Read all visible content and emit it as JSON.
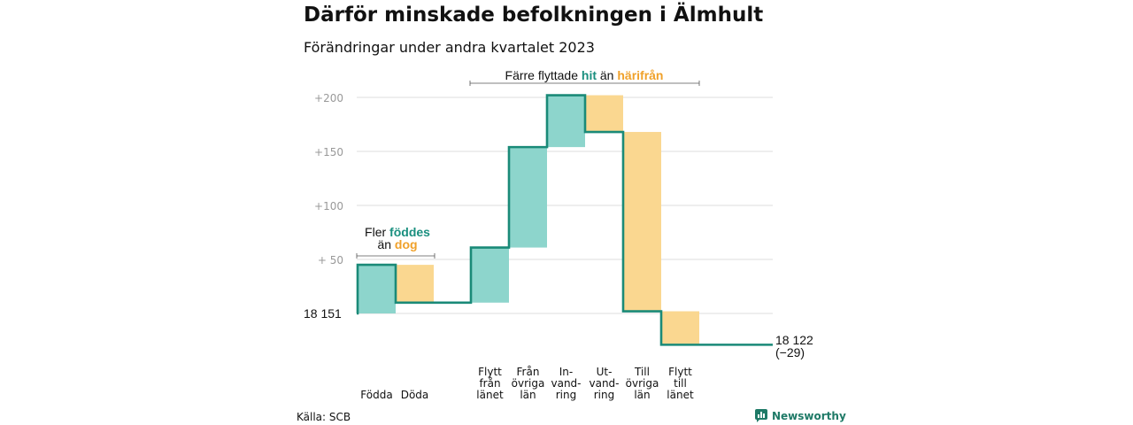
{
  "header": {
    "title": "Därför minskade befolkningen i Älmhult",
    "subtitle": "Förändringar under andra kvartalet 2023"
  },
  "colors": {
    "positive": "#8dd5cc",
    "negative": "#fad790",
    "line": "#1a8a78",
    "grid": "#dddddd",
    "teal_text": "#1a8f7f",
    "orange_text": "#f0a12a",
    "axis_text": "#999999"
  },
  "annotations": {
    "births": {
      "line1": "Fler",
      "hl1": "föddes",
      "line2": "än",
      "hl2": "dog"
    },
    "migration": {
      "pre": "Färre flyttade",
      "hl1": "hit",
      "mid": "än",
      "hl2": "härifrån"
    }
  },
  "start_label": "18  151",
  "end_label": {
    "value": "18 122",
    "change": "(−29)"
  },
  "source": "Källa: SCB",
  "brand": "Newsworthy",
  "chart_data": {
    "type": "waterfall",
    "start": 18151,
    "end": 18122,
    "change": -29,
    "ylim": [
      -29,
      205
    ],
    "yticks": [
      {
        "value": 50,
        "label": "+  50"
      },
      {
        "value": 100,
        "label": "+100"
      },
      {
        "value": 150,
        "label": "+150"
      },
      {
        "value": 200,
        "label": "+200"
      }
    ],
    "steps": [
      {
        "label": [
          "Födda"
        ],
        "change": 45,
        "color": "positive"
      },
      {
        "label": [
          "Döda"
        ],
        "change": -35,
        "color": "negative"
      },
      {
        "label": [
          "Flytt",
          "från",
          "länet"
        ],
        "change": 51,
        "color": "positive"
      },
      {
        "label": [
          "Från",
          "övriga",
          "län"
        ],
        "change": 93,
        "color": "positive"
      },
      {
        "label": [
          "In-",
          "vand-",
          "ring"
        ],
        "change": 48,
        "color": "positive"
      },
      {
        "label": [
          "Ut-",
          "vand-",
          "ring"
        ],
        "change": -34,
        "color": "negative"
      },
      {
        "label": [
          "Till",
          "övriga",
          "län"
        ],
        "change": -166,
        "color": "negative"
      },
      {
        "label": [
          "Flytt",
          "till",
          "länet"
        ],
        "change": -31,
        "color": "negative"
      }
    ]
  }
}
